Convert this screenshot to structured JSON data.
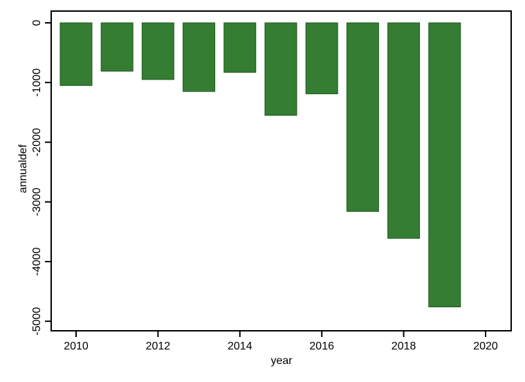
{
  "chart_data": {
    "type": "bar",
    "title": "",
    "xlabel": "year",
    "ylabel": "annualdef",
    "x": [
      2010,
      2011,
      2012,
      2013,
      2014,
      2015,
      2016,
      2017,
      2018,
      2019
    ],
    "values": [
      -1050,
      -810,
      -950,
      -1150,
      -830,
      -1550,
      -1190,
      -3160,
      -3610,
      -4760
    ],
    "xlim": [
      2009.4,
      2020.6
    ],
    "ylim": [
      -5150,
      0
    ],
    "xticks": [
      2010,
      2012,
      2014,
      2016,
      2018,
      2020
    ],
    "xtick_labels": [
      "2010",
      "2012",
      "2014",
      "2016",
      "2018",
      "2020"
    ],
    "yticks": [
      0,
      -1000,
      -2000,
      -3000,
      -4000,
      -5000
    ],
    "ytick_labels": [
      "0",
      "-1000",
      "-2000",
      "-3000",
      "-4000",
      "-5000"
    ],
    "grid": false,
    "legend": "none",
    "colors": {
      "bar_fill": "#347d32",
      "bar_stroke": "#1f5a1e",
      "axis": "#000000"
    }
  }
}
